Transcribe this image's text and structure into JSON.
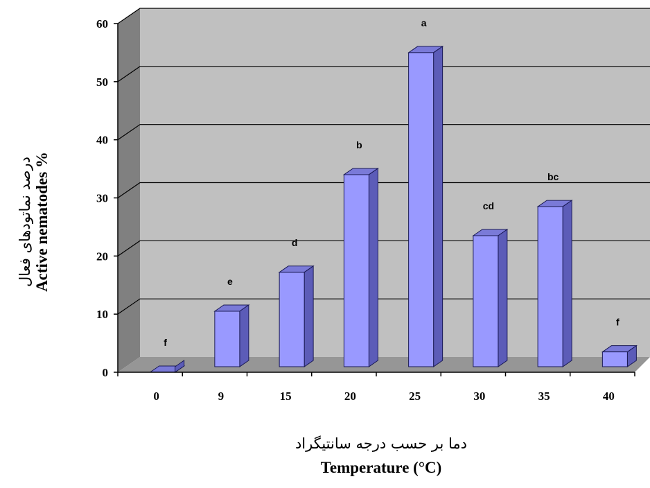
{
  "chart_data": {
    "type": "bar",
    "categories": [
      "0",
      "9",
      "15",
      "20",
      "25",
      "30",
      "35",
      "40"
    ],
    "values": [
      0,
      10.5,
      17.2,
      34,
      55,
      23.5,
      28.5,
      3.5
    ],
    "letters": [
      "f",
      "e",
      "d",
      "b",
      "a",
      "cd",
      "bc",
      "f"
    ],
    "ylim": [
      0,
      60
    ],
    "yticks": [
      0,
      10,
      20,
      30,
      40,
      50,
      60
    ],
    "grid": true,
    "ylabel_fa": "درصد نماتودهای فعال",
    "ylabel_en": "Active nematodes %",
    "xlabel_fa": "دما بر حسب درجه سانتیگراد",
    "xlabel_en": "Temperature (°C)",
    "colors": {
      "bar_front": "#9999ff",
      "bar_top": "#7a7ad8",
      "bar_side": "#5c5cb8",
      "wall": "#c0c0c0",
      "side_wall": "#808080",
      "floor": "#969696"
    }
  }
}
